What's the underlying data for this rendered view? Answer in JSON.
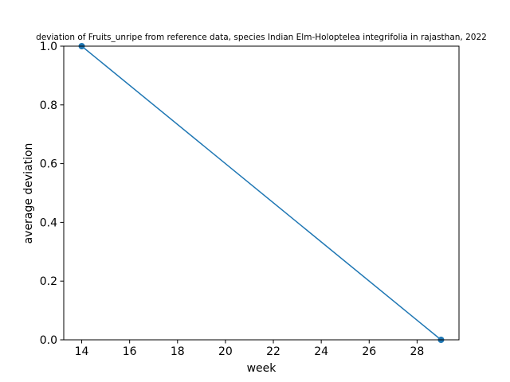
{
  "chart_data": {
    "type": "line",
    "title": "deviation of Fruits_unripe from reference data, species Indian Elm-Holoptelea integrifolia in rajasthan, 2022",
    "xlabel": "week",
    "ylabel": "average deviation",
    "xlim": [
      13.25,
      29.75
    ],
    "ylim": [
      0.0,
      1.0
    ],
    "xticks": [
      14,
      16,
      18,
      20,
      22,
      24,
      26,
      28
    ],
    "yticks": [
      0.0,
      0.2,
      0.4,
      0.6,
      0.8,
      1.0
    ],
    "xtick_labels": [
      "14",
      "16",
      "18",
      "20",
      "22",
      "24",
      "26",
      "28"
    ],
    "ytick_labels": [
      "0.0",
      "0.2",
      "0.4",
      "0.6",
      "0.8",
      "1.0"
    ],
    "grid": false,
    "series": [
      {
        "color": "#1f77b4",
        "marker": "circle",
        "x": [
          14,
          29
        ],
        "y": [
          1.0,
          0.0
        ]
      }
    ]
  }
}
